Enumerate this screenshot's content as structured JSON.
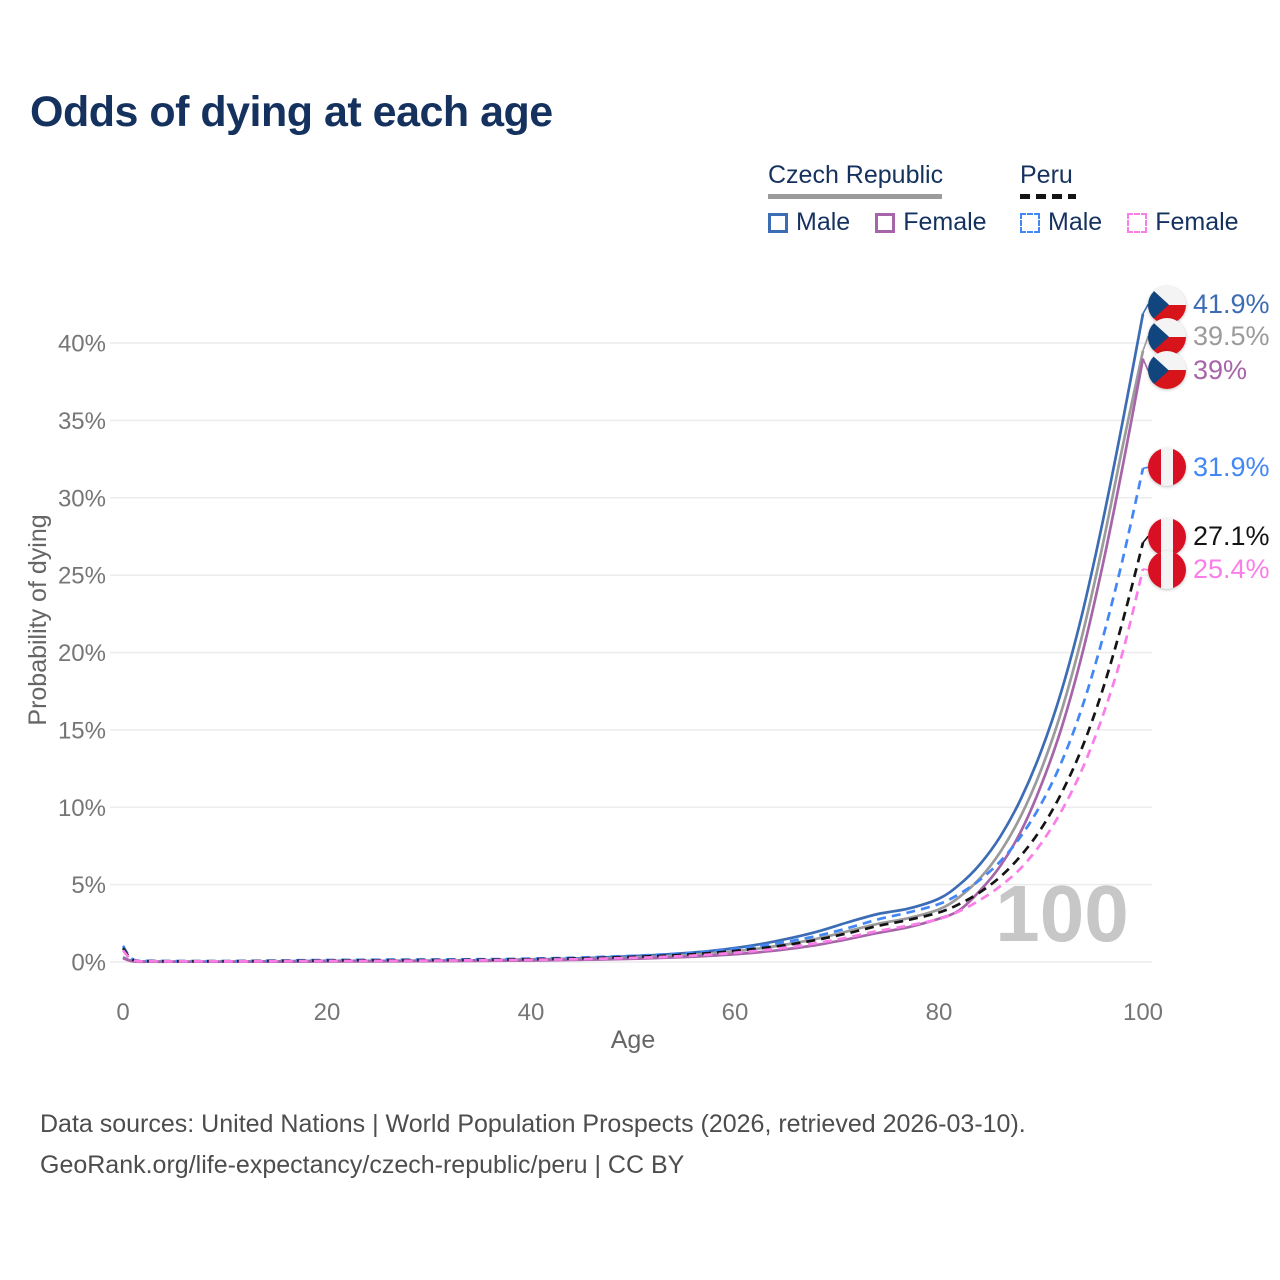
{
  "title": "Odds of dying at each age",
  "legend": {
    "groups": [
      {
        "id": "czech",
        "label": "Czech Republic",
        "line_style": "solid",
        "line_color": "#9b9b9b",
        "items": [
          {
            "id": "czech-male",
            "label": "Male",
            "color": "#3c6cb4",
            "dashed": false
          },
          {
            "id": "czech-female",
            "label": "Female",
            "color": "#a765a9",
            "dashed": false
          }
        ]
      },
      {
        "id": "peru",
        "label": "Peru",
        "line_style": "dashed",
        "line_color": "#141414",
        "items": [
          {
            "id": "peru-male",
            "label": "Male",
            "color": "#4287f5",
            "dashed": true
          },
          {
            "id": "peru-female",
            "label": "Female",
            "color": "#fb7ee8",
            "dashed": true
          }
        ]
      }
    ]
  },
  "chart_data": {
    "type": "line",
    "title": "Odds of dying at each age",
    "xlabel": "Age",
    "ylabel": "Probability of dying",
    "xlim": [
      0,
      100
    ],
    "ylim_percent": [
      0,
      42
    ],
    "x_ticks": [
      0,
      20,
      40,
      60,
      80,
      100
    ],
    "y_ticks_percent": [
      0,
      5,
      10,
      15,
      20,
      25,
      30,
      35,
      40
    ],
    "grid": true,
    "legend_position": "top-right",
    "watermark": "100",
    "x": [
      0,
      1,
      3,
      5,
      10,
      15,
      20,
      25,
      30,
      35,
      40,
      45,
      50,
      53,
      56,
      59,
      62,
      65,
      68,
      71,
      74,
      77,
      80,
      82,
      84,
      86,
      88,
      90,
      92,
      94,
      96,
      98,
      100
    ],
    "series": [
      {
        "id": "czech-male",
        "name": "Czech Republic Male",
        "country": "Czech Republic",
        "sex": "Male",
        "color": "#3c6cb4",
        "dash": false,
        "flag": "cz",
        "end_label": "41.9%",
        "values_percent": [
          0.3,
          0.05,
          0.03,
          0.02,
          0.02,
          0.04,
          0.07,
          0.08,
          0.09,
          0.11,
          0.16,
          0.24,
          0.38,
          0.48,
          0.62,
          0.82,
          1.1,
          1.48,
          1.95,
          2.55,
          3.1,
          3.45,
          4.1,
          5.0,
          6.3,
          8.1,
          10.5,
          13.6,
          17.5,
          22.4,
          28.3,
          34.9,
          41.9
        ]
      },
      {
        "id": "czech-both",
        "name": "Czech Republic",
        "country": "Czech Republic",
        "sex": "Both",
        "color": "#9b9b9b",
        "dash": false,
        "flag": "cz",
        "end_label": "39.5%",
        "values_percent": [
          0.27,
          0.05,
          0.02,
          0.02,
          0.02,
          0.03,
          0.05,
          0.06,
          0.07,
          0.09,
          0.13,
          0.19,
          0.29,
          0.37,
          0.48,
          0.63,
          0.84,
          1.13,
          1.5,
          1.98,
          2.47,
          2.83,
          3.4,
          4.2,
          5.4,
          7.1,
          9.4,
          12.4,
          16.2,
          21.0,
          26.8,
          33.3,
          39.5
        ]
      },
      {
        "id": "czech-female",
        "name": "Czech Republic Female",
        "country": "Czech Republic",
        "sex": "Female",
        "color": "#a765a9",
        "dash": false,
        "flag": "cz",
        "end_label": "39%",
        "values_percent": [
          0.25,
          0.04,
          0.02,
          0.02,
          0.02,
          0.02,
          0.03,
          0.04,
          0.05,
          0.07,
          0.1,
          0.14,
          0.21,
          0.27,
          0.35,
          0.46,
          0.61,
          0.82,
          1.1,
          1.47,
          1.88,
          2.25,
          2.8,
          3.35,
          4.6,
          6.2,
          8.4,
          11.4,
          15.1,
          19.8,
          25.5,
          32.0,
          39.0
        ]
      },
      {
        "id": "peru-male",
        "name": "Peru Male",
        "country": "Peru",
        "sex": "Male",
        "color": "#4287f5",
        "dash": true,
        "flag": "pe",
        "end_label": "31.9%",
        "values_percent": [
          1.05,
          0.16,
          0.08,
          0.06,
          0.06,
          0.09,
          0.13,
          0.15,
          0.16,
          0.18,
          0.22,
          0.29,
          0.4,
          0.49,
          0.61,
          0.78,
          1.0,
          1.3,
          1.68,
          2.18,
          2.75,
          3.2,
          3.75,
          4.4,
          5.3,
          6.5,
          8.1,
          10.2,
          12.9,
          16.4,
          20.8,
          26.0,
          31.9
        ]
      },
      {
        "id": "peru-both",
        "name": "Peru",
        "country": "Peru",
        "sex": "Both",
        "color": "#141414",
        "dash": true,
        "flag": "pe",
        "end_label": "27.1%",
        "values_percent": [
          0.9,
          0.13,
          0.06,
          0.05,
          0.05,
          0.07,
          0.1,
          0.11,
          0.12,
          0.14,
          0.18,
          0.24,
          0.33,
          0.41,
          0.51,
          0.66,
          0.85,
          1.1,
          1.43,
          1.85,
          2.33,
          2.72,
          3.2,
          3.75,
          4.5,
          5.5,
          6.85,
          8.6,
          10.9,
          13.8,
          17.5,
          22.0,
          27.1
        ]
      },
      {
        "id": "peru-female",
        "name": "Peru Female",
        "country": "Peru",
        "sex": "Female",
        "color": "#fb7ee8",
        "dash": true,
        "flag": "pe",
        "end_label": "25.4%",
        "values_percent": [
          0.75,
          0.11,
          0.05,
          0.04,
          0.04,
          0.05,
          0.07,
          0.08,
          0.09,
          0.11,
          0.14,
          0.19,
          0.27,
          0.33,
          0.42,
          0.55,
          0.71,
          0.93,
          1.22,
          1.58,
          2.0,
          2.35,
          2.78,
          3.28,
          4.0,
          4.9,
          6.05,
          7.65,
          9.75,
          12.4,
          15.8,
          20.0,
          25.4
        ]
      }
    ]
  },
  "footer": {
    "line1": "Data sources: United Nations | World Population Prospects (2026, retrieved 2026-03-10).",
    "line2": "GeoRank.org/life-expectancy/czech-republic/peru | CC BY"
  }
}
